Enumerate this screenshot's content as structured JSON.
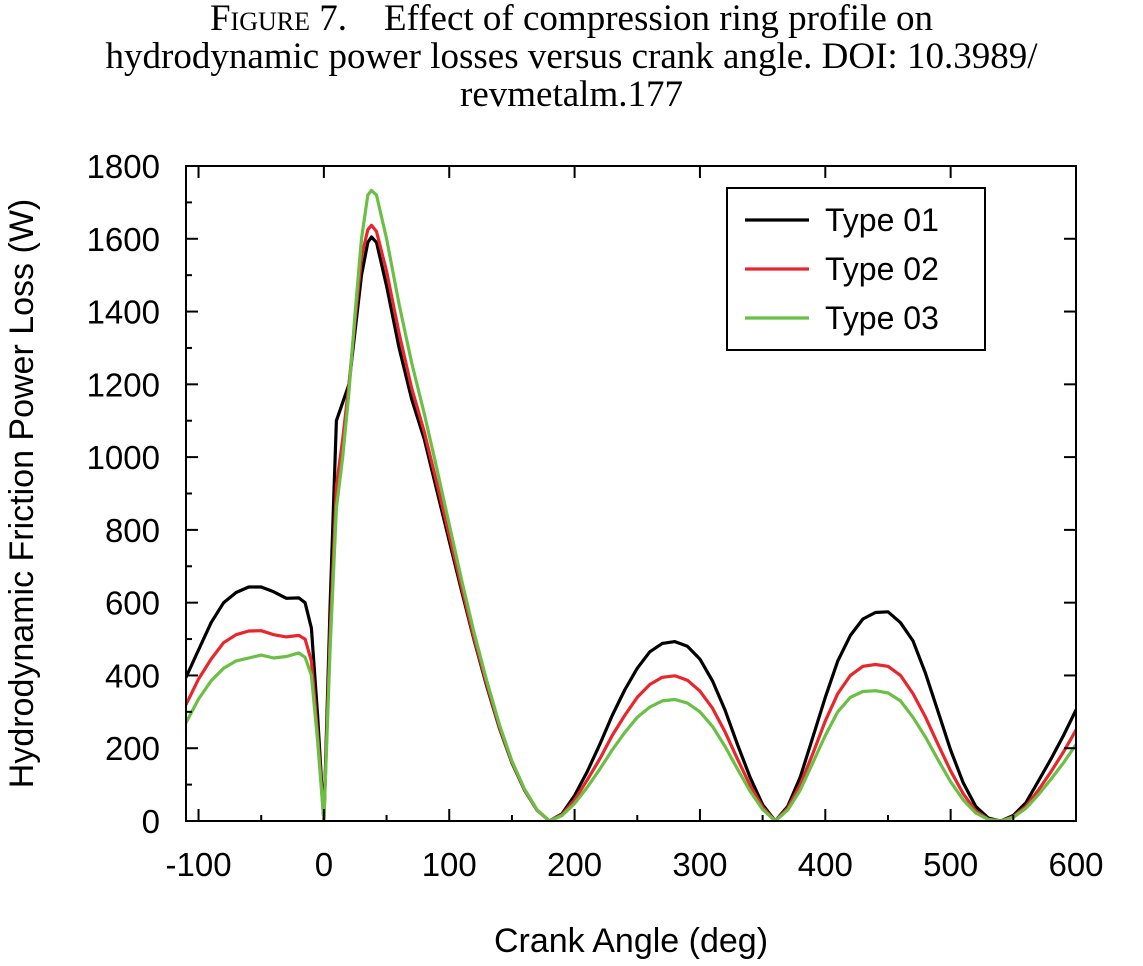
{
  "figure": {
    "label": "Figure 7.",
    "line1": "Effect of compression ring profile on",
    "line2": "hydrodynamic power losses versus crank angle. DOI: 10.3989/",
    "line3": "revmetalm.177"
  },
  "chart_data": {
    "type": "line",
    "title": "",
    "xlabel": "Crank Angle (deg)",
    "ylabel": "Hydrodynamic Friction Power Loss (W)",
    "xlim": [
      -110,
      600
    ],
    "ylim": [
      0,
      1800
    ],
    "xticks": [
      -100,
      0,
      100,
      200,
      300,
      400,
      500,
      600
    ],
    "yticks": [
      0,
      200,
      400,
      600,
      800,
      1000,
      1200,
      1400,
      1600,
      1800
    ],
    "grid": false,
    "legend_position": "top-right",
    "series": [
      {
        "name": "Type 01",
        "color": "#000000",
        "points": [
          [
            -110,
            395
          ],
          [
            -100,
            470
          ],
          [
            -90,
            545
          ],
          [
            -80,
            600
          ],
          [
            -70,
            628
          ],
          [
            -60,
            643
          ],
          [
            -50,
            643
          ],
          [
            -40,
            630
          ],
          [
            -30,
            612
          ],
          [
            -20,
            613
          ],
          [
            -15,
            600
          ],
          [
            -10,
            530
          ],
          [
            -5,
            290
          ],
          [
            0,
            0
          ],
          [
            5,
            600
          ],
          [
            10,
            1100
          ],
          [
            15,
            1150
          ],
          [
            20,
            1200
          ],
          [
            25,
            1350
          ],
          [
            30,
            1500
          ],
          [
            35,
            1590
          ],
          [
            38,
            1605
          ],
          [
            42,
            1590
          ],
          [
            50,
            1470
          ],
          [
            60,
            1300
          ],
          [
            70,
            1160
          ],
          [
            80,
            1050
          ],
          [
            90,
            910
          ],
          [
            100,
            770
          ],
          [
            110,
            630
          ],
          [
            120,
            495
          ],
          [
            130,
            370
          ],
          [
            140,
            255
          ],
          [
            150,
            160
          ],
          [
            160,
            85
          ],
          [
            170,
            30
          ],
          [
            180,
            0
          ],
          [
            190,
            20
          ],
          [
            200,
            70
          ],
          [
            210,
            135
          ],
          [
            220,
            210
          ],
          [
            230,
            290
          ],
          [
            240,
            360
          ],
          [
            250,
            420
          ],
          [
            260,
            465
          ],
          [
            270,
            488
          ],
          [
            280,
            493
          ],
          [
            290,
            480
          ],
          [
            300,
            445
          ],
          [
            310,
            385
          ],
          [
            320,
            305
          ],
          [
            330,
            210
          ],
          [
            340,
            120
          ],
          [
            350,
            45
          ],
          [
            360,
            0
          ],
          [
            370,
            40
          ],
          [
            380,
            120
          ],
          [
            390,
            230
          ],
          [
            400,
            340
          ],
          [
            410,
            440
          ],
          [
            420,
            510
          ],
          [
            430,
            555
          ],
          [
            440,
            573
          ],
          [
            450,
            575
          ],
          [
            460,
            545
          ],
          [
            470,
            495
          ],
          [
            480,
            405
          ],
          [
            490,
            300
          ],
          [
            500,
            195
          ],
          [
            510,
            105
          ],
          [
            520,
            40
          ],
          [
            530,
            8
          ],
          [
            540,
            0
          ],
          [
            550,
            15
          ],
          [
            560,
            50
          ],
          [
            570,
            110
          ],
          [
            580,
            170
          ],
          [
            590,
            235
          ],
          [
            600,
            305
          ]
        ]
      },
      {
        "name": "Type 02",
        "color": "#e8262b",
        "points": [
          [
            -110,
            320
          ],
          [
            -100,
            390
          ],
          [
            -90,
            445
          ],
          [
            -80,
            490
          ],
          [
            -70,
            512
          ],
          [
            -60,
            522
          ],
          [
            -50,
            523
          ],
          [
            -40,
            512
          ],
          [
            -30,
            506
          ],
          [
            -20,
            510
          ],
          [
            -15,
            500
          ],
          [
            -10,
            440
          ],
          [
            -5,
            240
          ],
          [
            0,
            0
          ],
          [
            5,
            520
          ],
          [
            10,
            920
          ],
          [
            15,
            1050
          ],
          [
            20,
            1200
          ],
          [
            25,
            1380
          ],
          [
            30,
            1550
          ],
          [
            35,
            1625
          ],
          [
            38,
            1637
          ],
          [
            42,
            1620
          ],
          [
            50,
            1510
          ],
          [
            60,
            1340
          ],
          [
            70,
            1190
          ],
          [
            80,
            1070
          ],
          [
            90,
            930
          ],
          [
            100,
            785
          ],
          [
            110,
            640
          ],
          [
            120,
            500
          ],
          [
            130,
            375
          ],
          [
            140,
            258
          ],
          [
            150,
            162
          ],
          [
            160,
            86
          ],
          [
            170,
            30
          ],
          [
            180,
            0
          ],
          [
            190,
            18
          ],
          [
            200,
            58
          ],
          [
            210,
            112
          ],
          [
            220,
            170
          ],
          [
            230,
            235
          ],
          [
            240,
            290
          ],
          [
            250,
            340
          ],
          [
            260,
            375
          ],
          [
            270,
            395
          ],
          [
            280,
            399
          ],
          [
            290,
            387
          ],
          [
            300,
            357
          ],
          [
            310,
            310
          ],
          [
            320,
            245
          ],
          [
            330,
            170
          ],
          [
            340,
            98
          ],
          [
            350,
            38
          ],
          [
            360,
            0
          ],
          [
            370,
            35
          ],
          [
            380,
            100
          ],
          [
            390,
            185
          ],
          [
            400,
            275
          ],
          [
            410,
            350
          ],
          [
            420,
            400
          ],
          [
            430,
            425
          ],
          [
            440,
            430
          ],
          [
            450,
            425
          ],
          [
            460,
            400
          ],
          [
            470,
            350
          ],
          [
            480,
            285
          ],
          [
            490,
            210
          ],
          [
            500,
            138
          ],
          [
            510,
            75
          ],
          [
            520,
            28
          ],
          [
            530,
            5
          ],
          [
            540,
            0
          ],
          [
            550,
            12
          ],
          [
            560,
            40
          ],
          [
            570,
            85
          ],
          [
            580,
            135
          ],
          [
            590,
            190
          ],
          [
            600,
            250
          ]
        ]
      },
      {
        "name": "Type 03",
        "color": "#6abf45",
        "points": [
          [
            -110,
            270
          ],
          [
            -100,
            335
          ],
          [
            -90,
            385
          ],
          [
            -80,
            420
          ],
          [
            -70,
            440
          ],
          [
            -60,
            448
          ],
          [
            -50,
            456
          ],
          [
            -40,
            448
          ],
          [
            -30,
            452
          ],
          [
            -20,
            462
          ],
          [
            -15,
            450
          ],
          [
            -10,
            400
          ],
          [
            -5,
            220
          ],
          [
            0,
            0
          ],
          [
            5,
            480
          ],
          [
            10,
            860
          ],
          [
            15,
            1000
          ],
          [
            20,
            1180
          ],
          [
            25,
            1400
          ],
          [
            30,
            1600
          ],
          [
            35,
            1720
          ],
          [
            38,
            1733
          ],
          [
            42,
            1720
          ],
          [
            50,
            1600
          ],
          [
            60,
            1420
          ],
          [
            70,
            1260
          ],
          [
            80,
            1120
          ],
          [
            90,
            970
          ],
          [
            100,
            815
          ],
          [
            110,
            660
          ],
          [
            120,
            515
          ],
          [
            130,
            385
          ],
          [
            140,
            265
          ],
          [
            150,
            165
          ],
          [
            160,
            88
          ],
          [
            170,
            31
          ],
          [
            180,
            0
          ],
          [
            190,
            15
          ],
          [
            200,
            48
          ],
          [
            210,
            92
          ],
          [
            220,
            142
          ],
          [
            230,
            195
          ],
          [
            240,
            243
          ],
          [
            250,
            285
          ],
          [
            260,
            313
          ],
          [
            270,
            330
          ],
          [
            280,
            334
          ],
          [
            290,
            324
          ],
          [
            300,
            300
          ],
          [
            310,
            260
          ],
          [
            320,
            205
          ],
          [
            330,
            143
          ],
          [
            340,
            82
          ],
          [
            350,
            32
          ],
          [
            360,
            0
          ],
          [
            370,
            30
          ],
          [
            380,
            85
          ],
          [
            390,
            160
          ],
          [
            400,
            235
          ],
          [
            410,
            300
          ],
          [
            420,
            340
          ],
          [
            430,
            356
          ],
          [
            440,
            358
          ],
          [
            450,
            352
          ],
          [
            460,
            330
          ],
          [
            470,
            285
          ],
          [
            480,
            230
          ],
          [
            490,
            168
          ],
          [
            500,
            108
          ],
          [
            510,
            58
          ],
          [
            520,
            22
          ],
          [
            530,
            4
          ],
          [
            540,
            0
          ],
          [
            550,
            10
          ],
          [
            560,
            35
          ],
          [
            570,
            72
          ],
          [
            580,
            115
          ],
          [
            590,
            160
          ],
          [
            600,
            210
          ]
        ]
      }
    ]
  }
}
